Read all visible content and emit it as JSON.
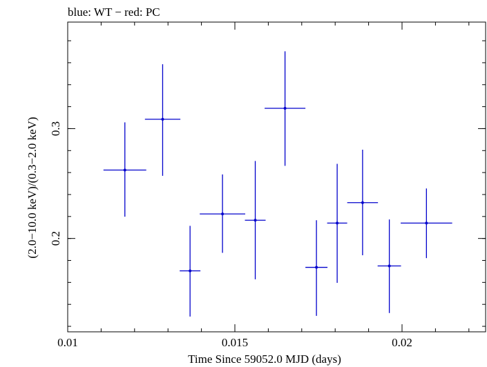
{
  "chart_data": {
    "type": "scatter",
    "title": "blue: WT − red: PC",
    "xlabel": "Time Since 59052.0 MJD (days)",
    "ylabel": "(2.0−10.0 keV)/(0.3−2.0 keV)",
    "xlim": [
      0.01,
      0.0225
    ],
    "ylim": [
      0.115,
      0.397
    ],
    "x_ticks": [
      {
        "value": 0.01,
        "label": "0.01"
      },
      {
        "value": 0.015,
        "label": "0.015"
      },
      {
        "value": 0.02,
        "label": "0.02"
      }
    ],
    "y_ticks": [
      {
        "value": 0.2,
        "label": "0.2"
      },
      {
        "value": 0.3,
        "label": "0.3"
      }
    ],
    "x_minor_step": 0.001,
    "y_minor_step": 0.02,
    "grid": false,
    "series": [
      {
        "color": "#0000cc",
        "points": [
          {
            "x": 0.01171,
            "y": 0.2623,
            "xerr": 0.00064,
            "ylo": 0.2198,
            "yhi": 0.3057
          },
          {
            "x": 0.01284,
            "y": 0.3085,
            "xerr": 0.00053,
            "ylo": 0.257,
            "yhi": 0.3586
          },
          {
            "x": 0.01366,
            "y": 0.1705,
            "xerr": 0.00031,
            "ylo": 0.1289,
            "yhi": 0.2115
          },
          {
            "x": 0.01463,
            "y": 0.2223,
            "xerr": 0.00068,
            "ylo": 0.1869,
            "yhi": 0.2583
          },
          {
            "x": 0.01561,
            "y": 0.2166,
            "xerr": 0.00031,
            "ylo": 0.1628,
            "yhi": 0.2705
          },
          {
            "x": 0.0165,
            "y": 0.3185,
            "xerr": 0.00061,
            "ylo": 0.2661,
            "yhi": 0.3704
          },
          {
            "x": 0.01744,
            "y": 0.1737,
            "xerr": 0.00033,
            "ylo": 0.1295,
            "yhi": 0.2166
          },
          {
            "x": 0.01806,
            "y": 0.214,
            "xerr": 0.0003,
            "ylo": 0.1596,
            "yhi": 0.2679
          },
          {
            "x": 0.01882,
            "y": 0.2326,
            "xerr": 0.00046,
            "ylo": 0.1847,
            "yhi": 0.2808
          },
          {
            "x": 0.01962,
            "y": 0.175,
            "xerr": 0.00035,
            "ylo": 0.1321,
            "yhi": 0.2173
          },
          {
            "x": 0.02073,
            "y": 0.214,
            "xerr": 0.00077,
            "ylo": 0.1821,
            "yhi": 0.2455
          }
        ]
      }
    ]
  }
}
